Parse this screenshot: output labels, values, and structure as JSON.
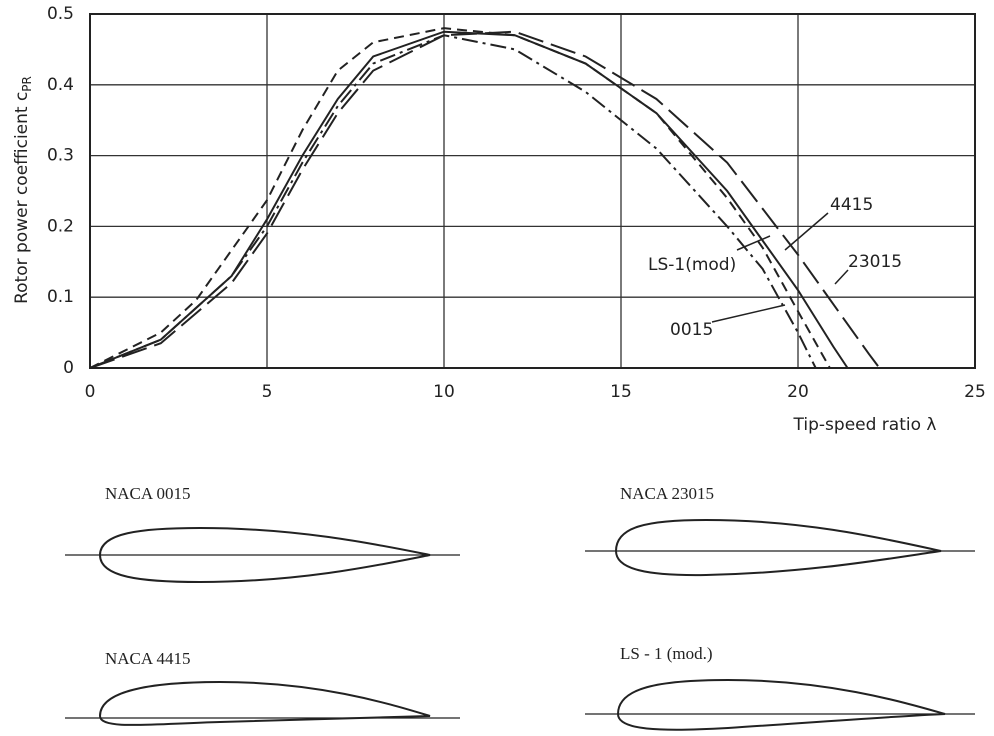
{
  "chart_data": {
    "type": "line",
    "x_label": "Tip-speed ratio λ",
    "y_label": "Rotor power coefficient c",
    "y_label_subscript": "PR",
    "xlim": [
      0,
      25
    ],
    "xticks": [
      0,
      5,
      10,
      15,
      20,
      25
    ],
    "ylim": [
      0,
      0.5
    ],
    "yticks": [
      0,
      0.1,
      0.2,
      0.3,
      0.4,
      0.5
    ],
    "grid": true,
    "series": [
      {
        "name": "4415",
        "color": "#222222",
        "dash": "solid",
        "x": [
          0,
          2,
          4,
          5,
          6,
          7,
          8,
          10,
          12,
          14,
          16,
          18,
          20,
          21,
          21.4
        ],
        "values": [
          0,
          0.04,
          0.13,
          0.21,
          0.3,
          0.38,
          0.44,
          0.475,
          0.47,
          0.43,
          0.36,
          0.25,
          0.11,
          0.03,
          0
        ]
      },
      {
        "name": "LS-1(mod)",
        "color": "#222222",
        "dash": "dashed",
        "x": [
          0,
          2,
          3,
          5,
          6,
          7,
          8,
          10,
          12,
          14,
          16,
          18,
          19,
          20,
          20.9
        ],
        "values": [
          0,
          0.05,
          0.096,
          0.237,
          0.336,
          0.42,
          0.46,
          0.48,
          0.47,
          0.43,
          0.36,
          0.24,
          0.17,
          0.08,
          0
        ]
      },
      {
        "name": "0015",
        "color": "#222222",
        "dash": "dashdot",
        "x": [
          0,
          2,
          4,
          5,
          6,
          7,
          8,
          10,
          12,
          14,
          16,
          18,
          19,
          20,
          20.5
        ],
        "values": [
          0,
          0.04,
          0.13,
          0.2,
          0.29,
          0.37,
          0.43,
          0.47,
          0.45,
          0.39,
          0.31,
          0.2,
          0.14,
          0.05,
          0
        ]
      },
      {
        "name": "23015",
        "color": "#222222",
        "dash": "longdash",
        "x": [
          0,
          2,
          4,
          5,
          6,
          7,
          8,
          10,
          12,
          14,
          16,
          18,
          20,
          21,
          22,
          22.3
        ],
        "values": [
          0,
          0.035,
          0.12,
          0.19,
          0.28,
          0.36,
          0.42,
          0.47,
          0.475,
          0.44,
          0.38,
          0.29,
          0.16,
          0.09,
          0.02,
          0
        ]
      }
    ]
  },
  "airfoils": [
    "NACA 0015",
    "NACA 23015",
    "NACA 4415",
    "LS - 1 (mod.)"
  ]
}
